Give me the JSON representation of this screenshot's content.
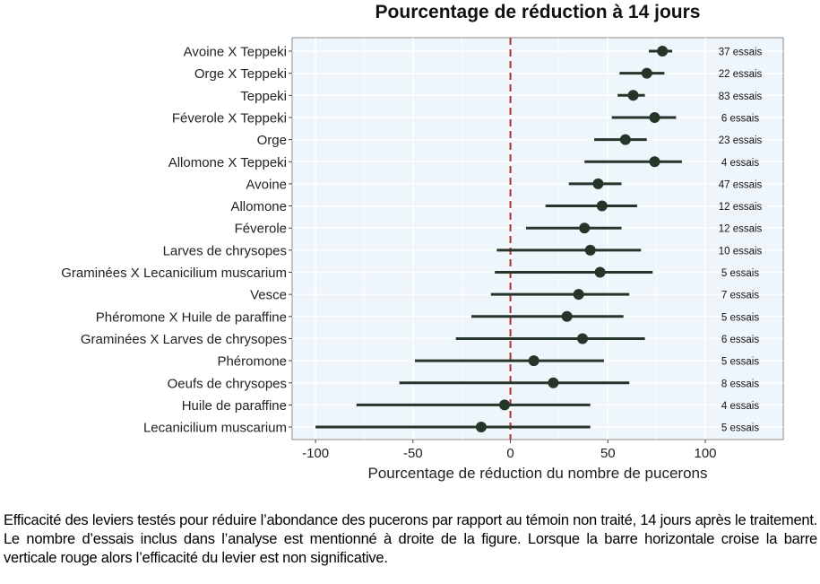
{
  "chart_data": {
    "type": "forest",
    "title": "Pourcentage de réduction à 14 jours",
    "xlabel": "Pourcentage de réduction du nombre de pucerons",
    "xlim": [
      -112,
      140
    ],
    "xticks": [
      -100,
      -50,
      0,
      50,
      100
    ],
    "reference_line": 0,
    "reference_line_color": "#b03030",
    "point_color": "#26352a",
    "panel_background": "#eef6fc",
    "grid": true,
    "rows": [
      {
        "label": "Avoine X Teppeki",
        "estimate": 78,
        "low": 71,
        "high": 83,
        "trials": "37 essais"
      },
      {
        "label": "Orge X Teppeki",
        "estimate": 70,
        "low": 56,
        "high": 79,
        "trials": "22 essais"
      },
      {
        "label": "Teppeki",
        "estimate": 63,
        "low": 55,
        "high": 69,
        "trials": "83 essais"
      },
      {
        "label": "Féverole X Teppeki",
        "estimate": 74,
        "low": 52,
        "high": 85,
        "trials": "6 essais"
      },
      {
        "label": "Orge",
        "estimate": 59,
        "low": 43,
        "high": 70,
        "trials": "23 essais"
      },
      {
        "label": "Allomone X Teppeki",
        "estimate": 74,
        "low": 38,
        "high": 88,
        "trials": "4 essais"
      },
      {
        "label": "Avoine",
        "estimate": 45,
        "low": 30,
        "high": 57,
        "trials": "47 essais"
      },
      {
        "label": "Allomone",
        "estimate": 47,
        "low": 18,
        "high": 65,
        "trials": "12 essais"
      },
      {
        "label": "Féverole",
        "estimate": 38,
        "low": 8,
        "high": 57,
        "trials": "12 essais"
      },
      {
        "label": "Larves de chrysopes",
        "estimate": 41,
        "low": -7,
        "high": 67,
        "trials": "10 essais"
      },
      {
        "label": "Graminées X Lecanicilium muscarium",
        "estimate": 46,
        "low": -8,
        "high": 73,
        "trials": "5 essais"
      },
      {
        "label": "Vesce",
        "estimate": 35,
        "low": -10,
        "high": 61,
        "trials": "7 essais"
      },
      {
        "label": "Phéromone X Huile de paraffine",
        "estimate": 29,
        "low": -20,
        "high": 58,
        "trials": "5 essais"
      },
      {
        "label": "Graminées X Larves de chrysopes",
        "estimate": 37,
        "low": -28,
        "high": 69,
        "trials": "6 essais"
      },
      {
        "label": "Phéromone",
        "estimate": 12,
        "low": -49,
        "high": 48,
        "trials": "5 essais"
      },
      {
        "label": "Oeufs de chrysopes",
        "estimate": 22,
        "low": -57,
        "high": 61,
        "trials": "8 essais"
      },
      {
        "label": "Huile de paraffine",
        "estimate": -3,
        "low": -79,
        "high": 41,
        "trials": "4 essais"
      },
      {
        "label": "Lecanicilium muscarium",
        "estimate": -15,
        "low": -100,
        "high": 41,
        "trials": "5 essais"
      }
    ]
  },
  "caption": "Efficacité des leviers testés pour réduire l’abondance des pucerons par rapport au témoin non traité, 14 jours après le traitement. Le nombre d’essais inclus dans l’analyse est mentionné à droite de la figure. Lorsque la barre horizontale croise la barre verticale rouge alors l’efficacité du levier est non significative."
}
